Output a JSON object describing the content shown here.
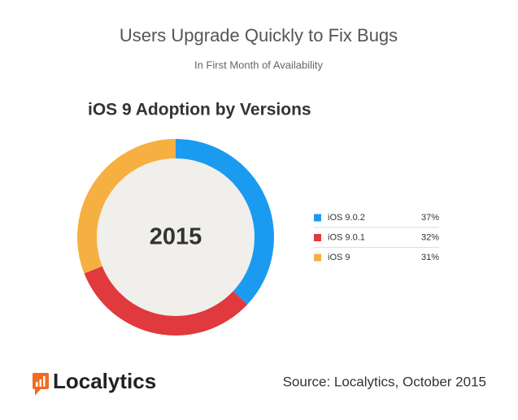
{
  "chart_data": {
    "type": "donut",
    "title": "Users Upgrade Quickly to Fix Bugs",
    "subtitle": "In First Month of Availability",
    "chart_title": "iOS 9 Adoption by Versions",
    "center_label": "2015",
    "categories": [
      "iOS 9.0.2",
      "iOS 9.0.1",
      "iOS 9"
    ],
    "values": [
      37,
      32,
      31
    ],
    "value_labels": [
      "37%",
      "32%",
      "31%"
    ],
    "colors": [
      "#1a9bf0",
      "#e0393e",
      "#f5b041"
    ]
  },
  "footer": {
    "logo": "Localytics",
    "source": "Source: Localytics, October 2015"
  }
}
